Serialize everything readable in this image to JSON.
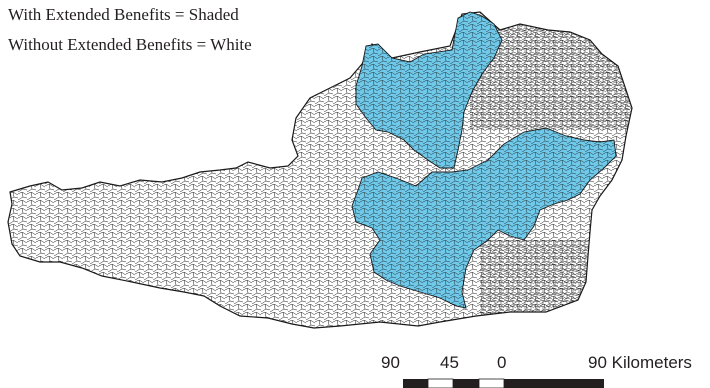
{
  "legend": {
    "shaded_label": "With Extended Benefits = Shaded",
    "white_label": "Without Extended Benefits = White"
  },
  "scale_bar": {
    "labels": [
      "90",
      "45",
      "0",
      "90 Kilometers"
    ]
  },
  "colors": {
    "shaded_region": "#6ec9ea",
    "unshaded_region": "#ffffff",
    "boundary": "#1a1a1a",
    "scale_bar_dark": "#231f20",
    "scale_bar_light": "#ffffff",
    "text": "#231f20"
  }
}
